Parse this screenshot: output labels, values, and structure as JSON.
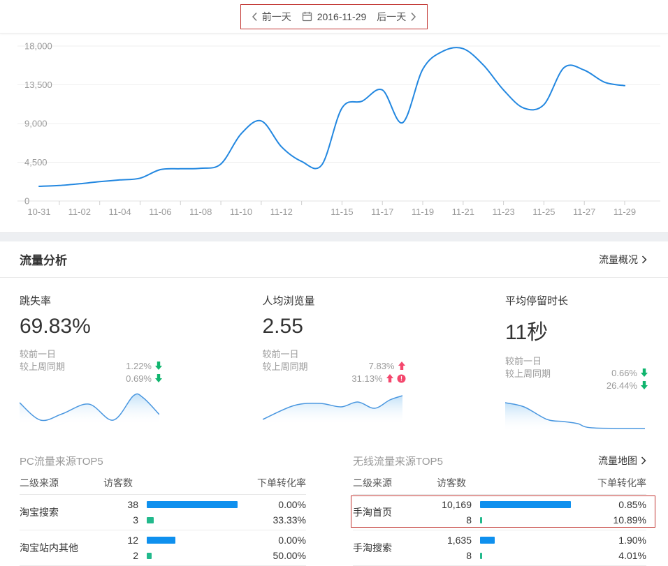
{
  "topbar": {
    "prev_label": "前一天",
    "date": "2016-11-29",
    "next_label": "后一天"
  },
  "chart_data": {
    "type": "line",
    "title": "",
    "x": [
      "10-31",
      "11-01",
      "11-02",
      "11-03",
      "11-04",
      "11-05",
      "11-06",
      "11-07",
      "11-08",
      "11-09",
      "11-10",
      "11-11",
      "11-12",
      "11-13",
      "11-14",
      "11-15",
      "11-16",
      "11-17",
      "11-18",
      "11-19",
      "11-20",
      "11-21",
      "11-22",
      "11-23",
      "11-24",
      "11-25",
      "11-26",
      "11-27",
      "11-28",
      "11-29"
    ],
    "values": [
      1700,
      1800,
      2000,
      2250,
      2450,
      2650,
      3650,
      3750,
      3800,
      4300,
      7800,
      9300,
      6300,
      4600,
      4200,
      10800,
      11600,
      12900,
      9100,
      15300,
      17400,
      17700,
      15800,
      12900,
      10800,
      11200,
      15500,
      15200,
      13800,
      13400
    ],
    "x_tick_indices": [
      0,
      2,
      4,
      6,
      8,
      10,
      12,
      15,
      17,
      19,
      21,
      23,
      25,
      27,
      29
    ],
    "x_tick_labels": [
      "10-31",
      "11-02",
      "11-04",
      "11-06",
      "11-08",
      "11-10",
      "11-12",
      "11-15",
      "11-17",
      "11-19",
      "11-21",
      "11-23",
      "11-25",
      "11-27",
      "11-29"
    ],
    "y_ticks": [
      0,
      4500,
      9000,
      13500,
      18000
    ],
    "y_tick_labels": [
      "0",
      "4,500",
      "9,000",
      "13,500",
      "18,000"
    ],
    "ylim": [
      0,
      18000
    ],
    "grid": true,
    "legend": "none"
  },
  "section": {
    "title": "流量分析",
    "overview_link": "流量概况"
  },
  "metrics": [
    {
      "title": "跳失率",
      "value": "69.83%",
      "compare_labels": [
        "较前一日",
        "较上周同期"
      ],
      "compare_values": [
        {
          "text": "1.22%",
          "direction": "down",
          "alert": false
        },
        {
          "text": "0.69%",
          "direction": "down",
          "alert": false
        }
      ],
      "spark_shape": [
        [
          0,
          20
        ],
        [
          30,
          45
        ],
        [
          61,
          36
        ],
        [
          99,
          22
        ],
        [
          134,
          45
        ],
        [
          163,
          10
        ],
        [
          177,
          13
        ],
        [
          200,
          37
        ]
      ]
    },
    {
      "title": "人均浏览量",
      "value": "2.55",
      "compare_labels": [
        "较前一日",
        "较上周同期"
      ],
      "compare_values": [
        {
          "text": "7.83%",
          "direction": "up",
          "alert": false
        },
        {
          "text": "31.13%",
          "direction": "up",
          "alert": true
        }
      ],
      "spark_shape": [
        [
          0,
          44
        ],
        [
          45,
          24
        ],
        [
          82,
          21
        ],
        [
          112,
          26
        ],
        [
          136,
          19
        ],
        [
          160,
          28
        ],
        [
          182,
          16
        ],
        [
          200,
          10
        ]
      ]
    },
    {
      "title": "平均停留时长",
      "value": "11秒",
      "compare_labels": [
        "较前一日",
        "较上周同期"
      ],
      "compare_values": [
        {
          "text": "0.66%",
          "direction": "down",
          "alert": false
        },
        {
          "text": "26.44%",
          "direction": "down",
          "alert": false
        }
      ],
      "spark_shape": [
        [
          0,
          10
        ],
        [
          27,
          16
        ],
        [
          60,
          34
        ],
        [
          84,
          37
        ],
        [
          104,
          40
        ],
        [
          124,
          46
        ],
        [
          200,
          47
        ]
      ]
    }
  ],
  "tables": [
    {
      "title": "PC流量来源TOP5",
      "link": "",
      "columns": [
        "二级来源",
        "访客数",
        "下单转化率"
      ],
      "rows": [
        {
          "source": "淘宝搜索",
          "visitors": "38",
          "visitors_value": 38,
          "buyers": "3",
          "buyers_value": 3,
          "visit_rate": "0.00%",
          "buy_rate": "33.33%",
          "highlighted": false
        },
        {
          "source": "淘宝站内其他",
          "visitors": "12",
          "visitors_value": 12,
          "buyers": "2",
          "buyers_value": 2,
          "visit_rate": "0.00%",
          "buy_rate": "50.00%",
          "highlighted": false
        }
      ]
    },
    {
      "title": "无线流量来源TOP5",
      "link": "流量地图",
      "columns": [
        "二级来源",
        "访客数",
        "下单转化率"
      ],
      "rows": [
        {
          "source": "手淘首页",
          "visitors": "10,169",
          "visitors_value": 10169,
          "buyers": "8",
          "buyers_value": 8,
          "visit_rate": "0.85%",
          "buy_rate": "10.89%",
          "highlighted": true
        },
        {
          "source": "手淘搜索",
          "visitors": "1,635",
          "visitors_value": 1635,
          "buyers": "8",
          "buyers_value": 8,
          "visit_rate": "1.90%",
          "buy_rate": "4.01%",
          "highlighted": false
        }
      ]
    }
  ],
  "colors": {
    "line_blue": "#2287e0",
    "bar_blue": "#0f90ee",
    "bar_green": "#22b98c",
    "arrow_green": "#10b56e",
    "arrow_red": "#f4476d",
    "annotation_red": "#c23531",
    "grid": "#efefef",
    "axis_text": "#9a9a9a"
  }
}
